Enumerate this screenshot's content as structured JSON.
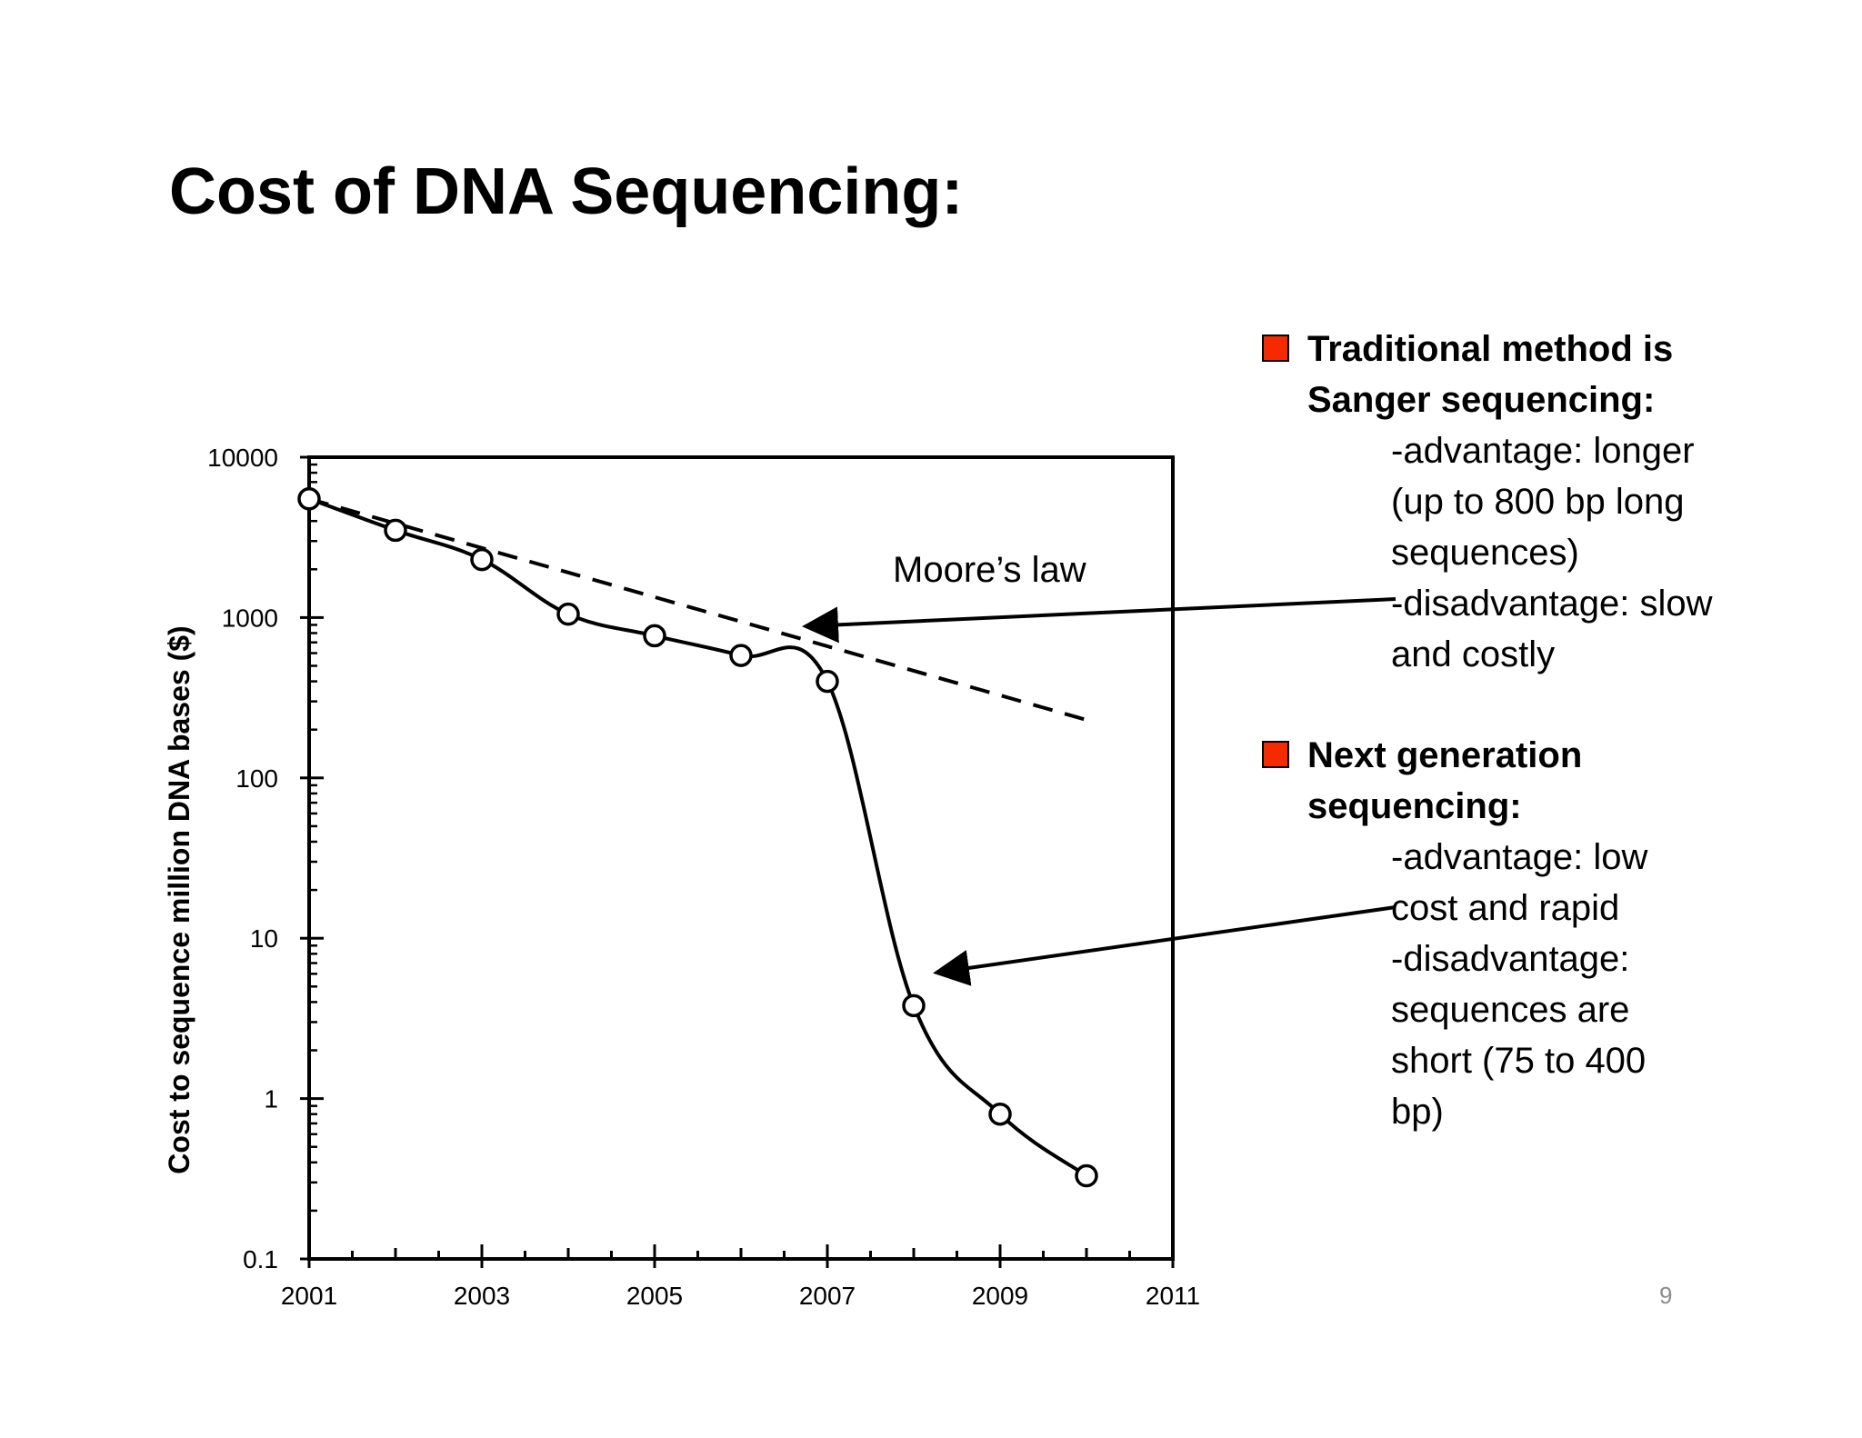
{
  "slide": {
    "title": "Cost of DNA Sequencing:",
    "page_number": "9"
  },
  "bullets": [
    {
      "heading": "Traditional method is\nSanger sequencing:",
      "details": "-advantage: longer\n(up to 800 bp long\nsequences)\n-disadvantage: slow\nand costly",
      "color": "#f62a00"
    },
    {
      "heading": "Next generation\nsequencing:",
      "details": "-advantage: low\ncost and rapid\n-disadvantage:\nsequences are\nshort (75 to 400\nbp)",
      "color": "#f62a00"
    }
  ],
  "chart_data": {
    "type": "line",
    "title": "",
    "xlabel": "",
    "ylabel": "Cost to sequence million DNA bases ($)",
    "yscale": "log",
    "xlim": [
      2001,
      2011
    ],
    "ylim": [
      0.1,
      10000
    ],
    "x_ticks": [
      "2001",
      "2003",
      "2005",
      "2007",
      "2009",
      "2011"
    ],
    "y_ticks": [
      "10000",
      "1000",
      "100",
      "10",
      "1",
      "0.1"
    ],
    "grid": false,
    "series": [
      {
        "style": "solid-with-open-circles",
        "x": [
          2001,
          2002,
          2003,
          2004,
          2005,
          2006,
          2007,
          2008,
          2009,
          2010
        ],
        "y": [
          5500,
          3500,
          2300,
          1050,
          770,
          580,
          400,
          3.8,
          0.8,
          0.33
        ]
      },
      {
        "name": "Moore’s law",
        "style": "dashed",
        "x": [
          2001,
          2010
        ],
        "y": [
          5500,
          230
        ]
      }
    ],
    "annotations": [
      {
        "text": "Moore’s law"
      }
    ]
  }
}
